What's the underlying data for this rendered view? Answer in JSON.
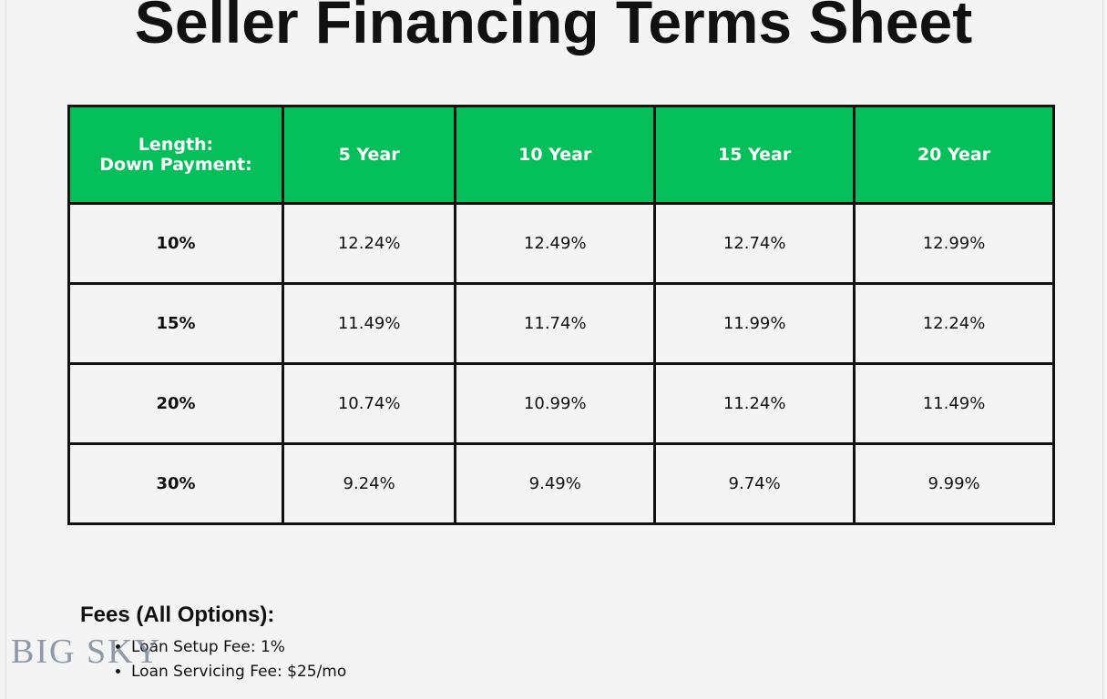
{
  "header": {
    "title": "Seller Financing Terms Sheet"
  },
  "table": {
    "header": [
      "Length:\nDown Payment:",
      "5 Year",
      "10 Year",
      "15 Year",
      "20 Year"
    ],
    "rows": [
      [
        "10%",
        "12.24%",
        "12.49%",
        "12.74%",
        "12.99%"
      ],
      [
        "15%",
        "11.49%",
        "11.74%",
        "11.99%",
        "12.24%"
      ],
      [
        "20%",
        "10.74%",
        "10.99%",
        "11.24%",
        "11.49%"
      ],
      [
        "30%",
        "9.24%",
        "9.49%",
        "9.74%",
        "9.99%"
      ]
    ]
  },
  "fees": {
    "title": "Fees (All Options):",
    "items": [
      "Loan Setup Fee: 1%",
      "Loan Servicing Fee: $25/mo"
    ]
  },
  "logo": {
    "text": "BIG SKY"
  }
}
